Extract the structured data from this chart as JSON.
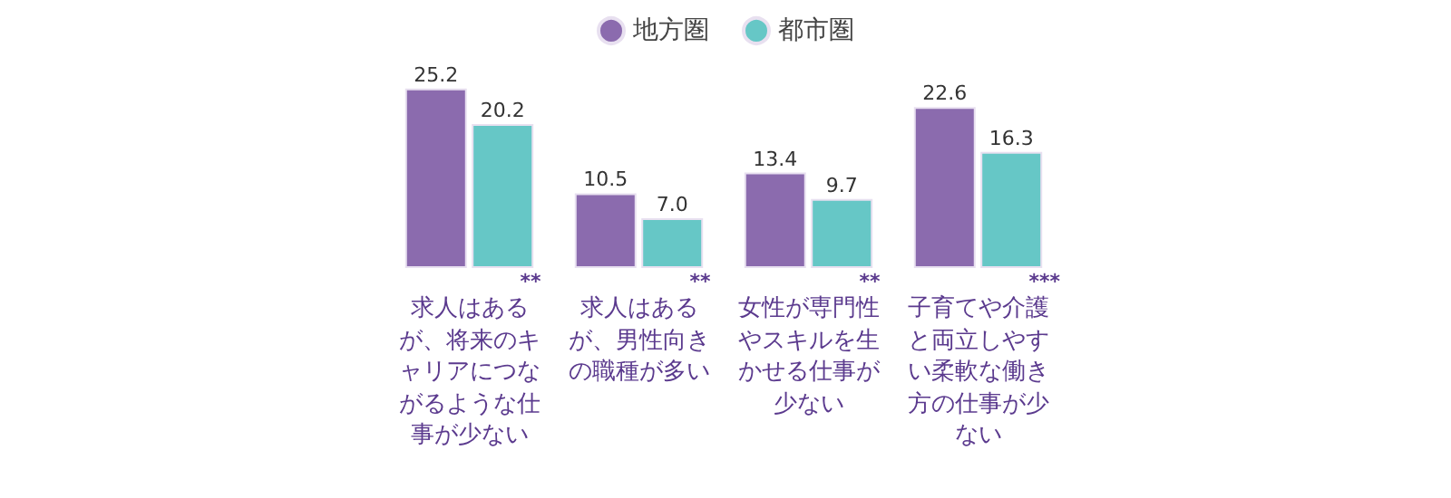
{
  "chart_data": {
    "type": "bar",
    "categories": [
      "求人はあるが、将来のキャリアにつながるような仕事が少ない",
      "求人はあるが、男性向きの職種が多い",
      "女性が専門性やスキルを生かせる仕事が少ない",
      "子育てや介護と両立しやすい柔軟な働き方の仕事が少ない"
    ],
    "series": [
      {
        "name": "地方圏",
        "color": "#8b6bae",
        "values": [
          25.2,
          10.5,
          13.4,
          22.6
        ],
        "value_labels": [
          "25.2",
          "10.5",
          "13.4",
          "22.6"
        ]
      },
      {
        "name": "都市圏",
        "color": "#66c7c6",
        "values": [
          20.2,
          7.0,
          9.7,
          16.3
        ],
        "value_labels": [
          "20.2",
          "7.0",
          "9.7",
          "16.3"
        ]
      }
    ],
    "legend": "top",
    "grid": false,
    "annotations": [
      "**",
      "**",
      "**",
      "***"
    ]
  }
}
